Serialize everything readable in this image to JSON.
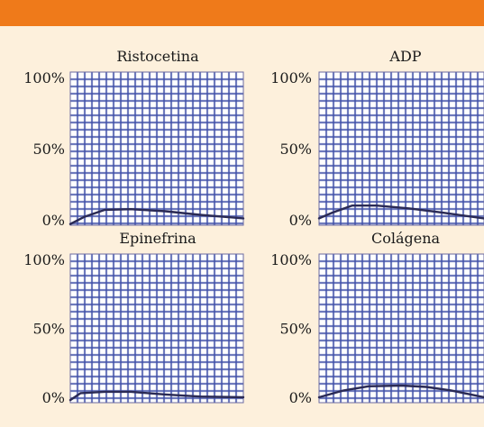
{
  "colors": {
    "banner": "#ef7a1a",
    "background": "#fdf0dc",
    "plot_grid": "#3f4fa8",
    "curve": "#2a2a55"
  },
  "chart_data": [
    {
      "type": "line",
      "title": "Ristocetina",
      "yticks": [
        "100%",
        "50%",
        "0%"
      ],
      "ylim": [
        0,
        100
      ],
      "xlim": [
        0,
        1
      ],
      "grid": true,
      "series": [
        {
          "x": [
            0,
            0.08,
            0.2,
            0.35,
            0.55,
            0.75,
            1.0
          ],
          "y": [
            -3,
            2,
            7,
            7.5,
            6,
            3.5,
            1
          ]
        }
      ]
    },
    {
      "type": "line",
      "title": "ADP",
      "yticks": [
        "100%",
        "50%",
        "0%"
      ],
      "ylim": [
        0,
        100
      ],
      "xlim": [
        0,
        1
      ],
      "grid": true,
      "series": [
        {
          "x": [
            0,
            0.08,
            0.2,
            0.35,
            0.55,
            0.75,
            1.0
          ],
          "y": [
            1,
            5,
            10,
            10,
            8,
            5,
            1
          ]
        }
      ]
    },
    {
      "type": "line",
      "title": "Epinefrina",
      "yticks": [
        "100%",
        "50%",
        "0%"
      ],
      "ylim": [
        0,
        100
      ],
      "xlim": [
        0,
        1
      ],
      "grid": true,
      "series": [
        {
          "x": [
            0,
            0.06,
            0.2,
            0.35,
            0.55,
            0.75,
            1.0
          ],
          "y": [
            -2,
            3,
            4,
            4,
            2,
            0.5,
            0
          ]
        }
      ]
    },
    {
      "type": "line",
      "title": "Colágena",
      "yticks": [
        "100%",
        "50%",
        "0%"
      ],
      "ylim": [
        0,
        100
      ],
      "xlim": [
        0,
        1
      ],
      "grid": true,
      "series": [
        {
          "x": [
            0,
            0.15,
            0.3,
            0.5,
            0.65,
            0.8,
            1.0
          ],
          "y": [
            0,
            5,
            8,
            8.5,
            7.5,
            5,
            0
          ]
        }
      ]
    }
  ]
}
